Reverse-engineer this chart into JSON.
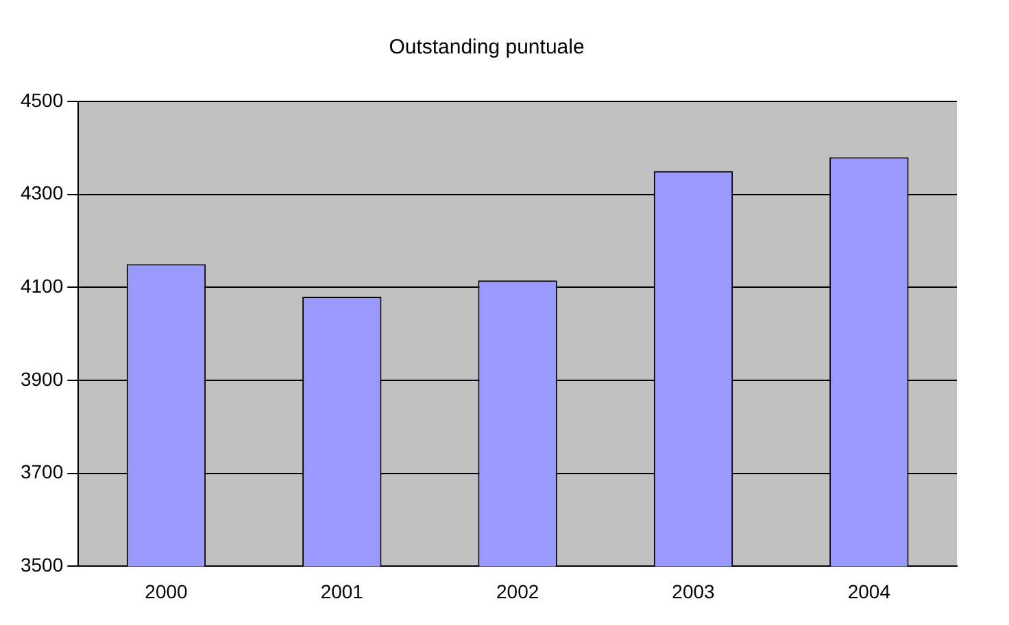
{
  "chart_data": {
    "type": "bar",
    "title": "Outstanding puntuale",
    "categories": [
      "2000",
      "2001",
      "2002",
      "2003",
      "2004"
    ],
    "values": [
      4150,
      4080,
      4115,
      4350,
      4380
    ],
    "color": "#9999ff",
    "ylim": [
      3500,
      4500
    ],
    "yticks": [
      3500,
      3700,
      3900,
      4100,
      4300,
      4500
    ],
    "grid": "y",
    "legend": false
  }
}
